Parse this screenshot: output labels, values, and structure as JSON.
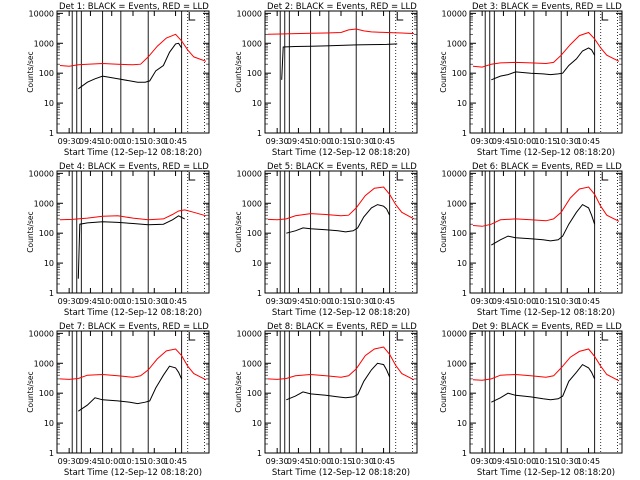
{
  "figure": {
    "start_time_label": "Start Time (12-Sep-12 08:18:20)",
    "ylabel": "Counts/sec",
    "colors": {
      "events": "#000000",
      "lld": "#ff0000",
      "axes": "#000000"
    }
  },
  "chart_data": [
    {
      "type": "line",
      "panel": 1,
      "title": "Det 1: BLACK = Events, RED = LLD",
      "xlabel": "Start Time (12-Sep-12 08:18:20)",
      "ylabel": "Counts/sec",
      "x_ticks": [
        "09:30",
        "09:45",
        "10:00",
        "10:15",
        "10:30",
        "10:45"
      ],
      "y_ticks": [
        "1",
        "10",
        "100",
        "1000",
        "10000"
      ],
      "y_scale": "log",
      "ylim": [
        1,
        12000
      ],
      "series": [
        {
          "name": "Events",
          "color": "#000000",
          "x": [
            0.14,
            0.2,
            0.25,
            0.3,
            0.4,
            0.48,
            0.53,
            0.58,
            0.61,
            0.65,
            0.7,
            0.74,
            0.78,
            0.8,
            0.82
          ],
          "y": [
            30,
            50,
            65,
            80,
            65,
            55,
            50,
            50,
            55,
            120,
            180,
            500,
            950,
            1000,
            700
          ]
        },
        {
          "name": "LLD",
          "color": "#ff0000",
          "x": [
            0.02,
            0.08,
            0.14,
            0.2,
            0.3,
            0.4,
            0.5,
            0.55,
            0.6,
            0.66,
            0.72,
            0.78,
            0.82,
            0.86,
            0.9,
            0.98
          ],
          "y": [
            180,
            170,
            190,
            200,
            210,
            200,
            190,
            200,
            350,
            800,
            1500,
            2000,
            1200,
            600,
            350,
            250
          ]
        }
      ]
    },
    {
      "type": "line",
      "panel": 2,
      "title": "Det 2: BLACK = Events, RED = LLD",
      "xlabel": "Start Time (12-Sep-12 08:18:20)",
      "ylabel": "Counts/sec",
      "x_ticks": [
        "09:30",
        "09:45",
        "10:00",
        "10:15",
        "10:30",
        "10:45"
      ],
      "y_ticks": [
        "1",
        "10",
        "100",
        "1000",
        "10000"
      ],
      "y_scale": "log",
      "ylim": [
        1,
        12000
      ],
      "series": [
        {
          "name": "Events",
          "color": "#000000",
          "x": [
            0.11,
            0.12,
            0.2,
            0.3,
            0.4,
            0.5,
            0.6,
            0.7,
            0.8,
            0.87
          ],
          "y": [
            60,
            750,
            780,
            800,
            820,
            850,
            880,
            900,
            920,
            950
          ]
        },
        {
          "name": "LLD",
          "color": "#ff0000",
          "x": [
            0.02,
            0.1,
            0.2,
            0.3,
            0.4,
            0.5,
            0.55,
            0.6,
            0.65,
            0.7,
            0.8,
            0.9,
            0.98
          ],
          "y": [
            2000,
            2050,
            2100,
            2150,
            2200,
            2300,
            2800,
            3000,
            2600,
            2400,
            2300,
            2200,
            2100
          ]
        }
      ]
    },
    {
      "type": "line",
      "panel": 3,
      "title": "Det 3: BLACK = Events, RED = LLD",
      "xlabel": "Start Time (12-Sep-12 08:18:20)",
      "ylabel": "Counts/sec",
      "x_ticks": [
        "09:30",
        "09:45",
        "10:00",
        "10:15",
        "10:30",
        "10:45"
      ],
      "y_ticks": [
        "1",
        "10",
        "100",
        "1000",
        "10000"
      ],
      "y_scale": "log",
      "ylim": [
        1,
        12000
      ],
      "series": [
        {
          "name": "Events",
          "color": "#000000",
          "x": [
            0.14,
            0.2,
            0.25,
            0.3,
            0.4,
            0.48,
            0.53,
            0.58,
            0.61,
            0.65,
            0.7,
            0.74,
            0.78,
            0.8,
            0.82
          ],
          "y": [
            60,
            80,
            90,
            110,
            100,
            95,
            90,
            95,
            100,
            180,
            300,
            550,
            700,
            600,
            400
          ]
        },
        {
          "name": "LLD",
          "color": "#ff0000",
          "x": [
            0.02,
            0.08,
            0.14,
            0.2,
            0.3,
            0.4,
            0.5,
            0.55,
            0.6,
            0.66,
            0.72,
            0.78,
            0.82,
            0.86,
            0.9,
            0.98
          ],
          "y": [
            170,
            160,
            200,
            220,
            230,
            220,
            210,
            230,
            400,
            900,
            1800,
            2300,
            1400,
            700,
            400,
            250
          ]
        }
      ]
    },
    {
      "type": "line",
      "panel": 4,
      "title": "Det 4: BLACK = Events, RED = LLD",
      "xlabel": "Start Time (12-Sep-12 08:18:20)",
      "ylabel": "Counts/sec",
      "x_ticks": [
        "09:30",
        "09:45",
        "10:00",
        "10:15",
        "10:30",
        "10:45"
      ],
      "y_ticks": [
        "1",
        "10",
        "100",
        "1000",
        "10000"
      ],
      "y_scale": "log",
      "ylim": [
        1,
        12000
      ],
      "series": [
        {
          "name": "Events",
          "color": "#000000",
          "x": [
            0.14,
            0.15,
            0.2,
            0.3,
            0.4,
            0.5,
            0.6,
            0.7,
            0.76,
            0.8,
            0.84
          ],
          "y": [
            3,
            200,
            220,
            240,
            230,
            210,
            190,
            200,
            280,
            380,
            300
          ]
        },
        {
          "name": "LLD",
          "color": "#ff0000",
          "x": [
            0.02,
            0.1,
            0.2,
            0.3,
            0.4,
            0.5,
            0.6,
            0.7,
            0.76,
            0.8,
            0.84,
            0.9,
            0.98
          ],
          "y": [
            280,
            290,
            320,
            370,
            380,
            320,
            280,
            300,
            420,
            550,
            600,
            500,
            380
          ]
        }
      ]
    },
    {
      "type": "line",
      "panel": 5,
      "title": "Det 5: BLACK = Events, RED = LLD",
      "xlabel": "Start Time (12-Sep-12 08:18:20)",
      "ylabel": "Counts/sec",
      "x_ticks": [
        "09:30",
        "09:45",
        "10:00",
        "10:15",
        "10:30",
        "10:45"
      ],
      "y_ticks": [
        "1",
        "10",
        "100",
        "1000",
        "10000"
      ],
      "y_scale": "log",
      "ylim": [
        1,
        12000
      ],
      "series": [
        {
          "name": "Events",
          "color": "#000000",
          "x": [
            0.14,
            0.2,
            0.25,
            0.3,
            0.4,
            0.48,
            0.53,
            0.58,
            0.61,
            0.65,
            0.7,
            0.74,
            0.78,
            0.8,
            0.82
          ],
          "y": [
            100,
            120,
            150,
            140,
            130,
            120,
            110,
            120,
            150,
            350,
            700,
            900,
            800,
            650,
            400
          ]
        },
        {
          "name": "LLD",
          "color": "#ff0000",
          "x": [
            0.02,
            0.08,
            0.14,
            0.2,
            0.3,
            0.4,
            0.5,
            0.55,
            0.6,
            0.66,
            0.72,
            0.78,
            0.82,
            0.86,
            0.9,
            0.98
          ],
          "y": [
            290,
            280,
            300,
            380,
            450,
            420,
            380,
            400,
            700,
            1800,
            3200,
            3500,
            2000,
            900,
            500,
            300
          ]
        }
      ]
    },
    {
      "type": "line",
      "panel": 6,
      "title": "Det 6: BLACK = Events, RED = LLD",
      "xlabel": "Start Time (12-Sep-12 08:18:20)",
      "ylabel": "Counts/sec",
      "x_ticks": [
        "09:30",
        "09:45",
        "10:00",
        "10:15",
        "10:30",
        "10:45"
      ],
      "y_ticks": [
        "1",
        "10",
        "100",
        "1000",
        "10000"
      ],
      "y_scale": "log",
      "ylim": [
        1,
        12000
      ],
      "series": [
        {
          "name": "Events",
          "color": "#000000",
          "x": [
            0.14,
            0.2,
            0.25,
            0.3,
            0.4,
            0.48,
            0.53,
            0.58,
            0.61,
            0.65,
            0.7,
            0.74,
            0.78,
            0.8,
            0.82
          ],
          "y": [
            40,
            60,
            80,
            70,
            65,
            60,
            55,
            60,
            80,
            200,
            500,
            900,
            700,
            400,
            200
          ]
        },
        {
          "name": "LLD",
          "color": "#ff0000",
          "x": [
            0.02,
            0.08,
            0.14,
            0.2,
            0.3,
            0.4,
            0.5,
            0.55,
            0.6,
            0.66,
            0.72,
            0.78,
            0.82,
            0.86,
            0.9,
            0.98
          ],
          "y": [
            180,
            170,
            200,
            280,
            300,
            280,
            260,
            300,
            500,
            1500,
            3000,
            3500,
            2000,
            800,
            400,
            250
          ]
        }
      ]
    },
    {
      "type": "line",
      "panel": 7,
      "title": "Det 7: BLACK = Events, RED = LLD",
      "xlabel": "Start Time (12-Sep-12 08:18:20)",
      "ylabel": "Counts/sec",
      "x_ticks": [
        "09:30",
        "09:45",
        "10:00",
        "10:15",
        "10:30",
        "10:45"
      ],
      "y_ticks": [
        "1",
        "10",
        "100",
        "1000",
        "10000"
      ],
      "y_scale": "log",
      "ylim": [
        1,
        12000
      ],
      "series": [
        {
          "name": "Events",
          "color": "#000000",
          "x": [
            0.14,
            0.2,
            0.25,
            0.3,
            0.4,
            0.48,
            0.53,
            0.58,
            0.61,
            0.65,
            0.7,
            0.74,
            0.78,
            0.8,
            0.82
          ],
          "y": [
            25,
            40,
            70,
            60,
            55,
            50,
            45,
            50,
            55,
            150,
            400,
            800,
            700,
            500,
            300
          ]
        },
        {
          "name": "LLD",
          "color": "#ff0000",
          "x": [
            0.02,
            0.08,
            0.14,
            0.2,
            0.3,
            0.4,
            0.5,
            0.55,
            0.6,
            0.66,
            0.72,
            0.78,
            0.82,
            0.86,
            0.9,
            0.98
          ],
          "y": [
            300,
            290,
            310,
            400,
            420,
            380,
            340,
            380,
            600,
            1400,
            2600,
            3000,
            1800,
            800,
            450,
            280
          ]
        }
      ]
    },
    {
      "type": "line",
      "panel": 8,
      "title": "Det 8: BLACK = Events, RED = LLD",
      "xlabel": "Start Time (12-Sep-12 08:18:20)",
      "ylabel": "Counts/sec",
      "x_ticks": [
        "09:30",
        "09:45",
        "10:00",
        "10:15",
        "10:30",
        "10:45"
      ],
      "y_ticks": [
        "1",
        "10",
        "100",
        "1000",
        "10000"
      ],
      "y_scale": "log",
      "ylim": [
        1,
        12000
      ],
      "series": [
        {
          "name": "Events",
          "color": "#000000",
          "x": [
            0.14,
            0.2,
            0.25,
            0.3,
            0.4,
            0.48,
            0.53,
            0.58,
            0.61,
            0.65,
            0.7,
            0.74,
            0.78,
            0.8,
            0.82
          ],
          "y": [
            60,
            80,
            110,
            95,
            85,
            75,
            70,
            75,
            90,
            250,
            600,
            1000,
            900,
            600,
            350
          ]
        },
        {
          "name": "LLD",
          "color": "#ff0000",
          "x": [
            0.02,
            0.08,
            0.14,
            0.2,
            0.3,
            0.4,
            0.5,
            0.55,
            0.6,
            0.66,
            0.72,
            0.78,
            0.82,
            0.86,
            0.9,
            0.98
          ],
          "y": [
            300,
            290,
            310,
            380,
            420,
            380,
            340,
            380,
            650,
            1800,
            3000,
            3500,
            2000,
            850,
            450,
            280
          ]
        }
      ]
    },
    {
      "type": "line",
      "panel": 9,
      "title": "Det 9: BLACK = Events, RED = LLD",
      "xlabel": "Start Time (12-Sep-12 08:18:20)",
      "ylabel": "Counts/sec",
      "x_ticks": [
        "09:30",
        "09:45",
        "10:00",
        "10:15",
        "10:30",
        "10:45"
      ],
      "y_ticks": [
        "1",
        "10",
        "100",
        "1000",
        "10000"
      ],
      "y_scale": "log",
      "ylim": [
        1,
        12000
      ],
      "series": [
        {
          "name": "Events",
          "color": "#000000",
          "x": [
            0.14,
            0.2,
            0.25,
            0.3,
            0.4,
            0.48,
            0.53,
            0.58,
            0.61,
            0.65,
            0.7,
            0.74,
            0.78,
            0.8,
            0.82
          ],
          "y": [
            50,
            70,
            100,
            85,
            75,
            65,
            60,
            65,
            80,
            250,
            500,
            900,
            700,
            500,
            300
          ]
        },
        {
          "name": "LLD",
          "color": "#ff0000",
          "x": [
            0.02,
            0.08,
            0.14,
            0.2,
            0.3,
            0.4,
            0.5,
            0.55,
            0.6,
            0.66,
            0.72,
            0.78,
            0.82,
            0.86,
            0.9,
            0.98
          ],
          "y": [
            280,
            270,
            300,
            400,
            420,
            380,
            340,
            380,
            700,
            1600,
            2500,
            3000,
            1700,
            800,
            420,
            260
          ]
        }
      ]
    }
  ]
}
